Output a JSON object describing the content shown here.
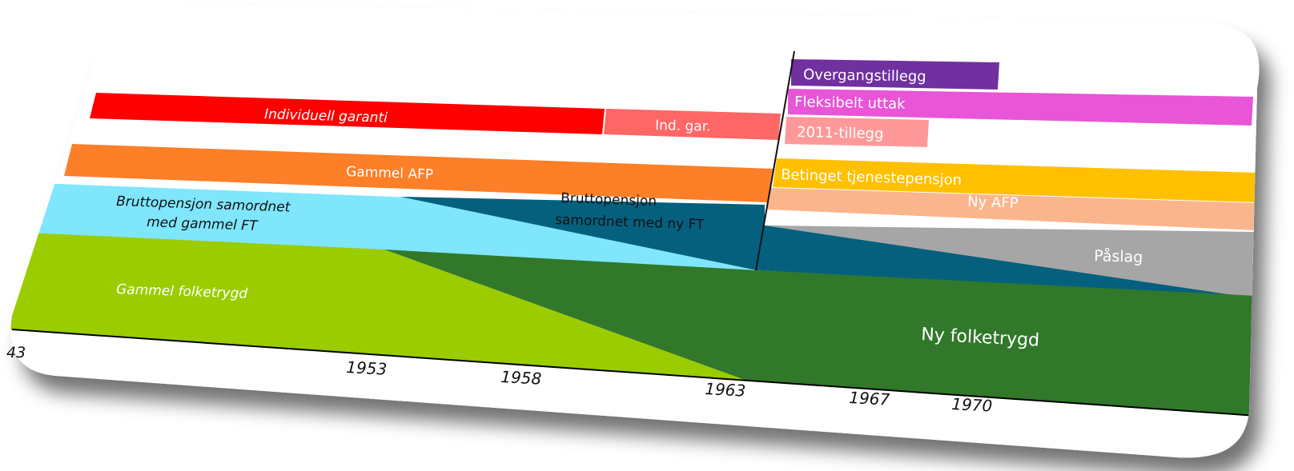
{
  "bands": {
    "individuell_garanti": {
      "label": "Individuell garanti",
      "color": "#ff0000"
    },
    "ind_gar": {
      "label": "Ind. gar.",
      "color": "#ff6666"
    },
    "gammel_afp": {
      "label": "Gammel AFP",
      "color": "#fd7f28"
    },
    "brutto_gammel": {
      "label_line1": "Bruttopensjon samordnet",
      "label_line2": "med gammel FT",
      "color": "#7fe6fc"
    },
    "brutto_ny": {
      "label_line1": "Bruttopensjon",
      "label_line2": "samordnet med ny FT",
      "color": "#05607e"
    },
    "gammel_folketrygd": {
      "label": "Gammel folketrygd",
      "color": "#9acc00"
    },
    "ny_folketrygd": {
      "label": "Ny folketrygd",
      "color": "#31782a"
    },
    "overgangstillegg": {
      "label": "Overgangstillegg",
      "color": "#7030a0"
    },
    "fleksibelt_uttak": {
      "label": "Fleksibelt uttak",
      "color": "#e855d6"
    },
    "tillegg_2011": {
      "label": "2011-tillegg",
      "color": "#ff9999"
    },
    "betinget_tjenestepensjon": {
      "label": "Betinget tjenestepensjon",
      "color": "#ffc000"
    },
    "ny_afp": {
      "label": "Ny AFP",
      "color": "#fbb58c"
    },
    "paslag": {
      "label": "Påslag",
      "color": "#a6a6a6"
    }
  },
  "axis": {
    "ticks": [
      "43",
      "1953",
      "1958",
      "1963",
      "1967",
      "1970"
    ]
  }
}
